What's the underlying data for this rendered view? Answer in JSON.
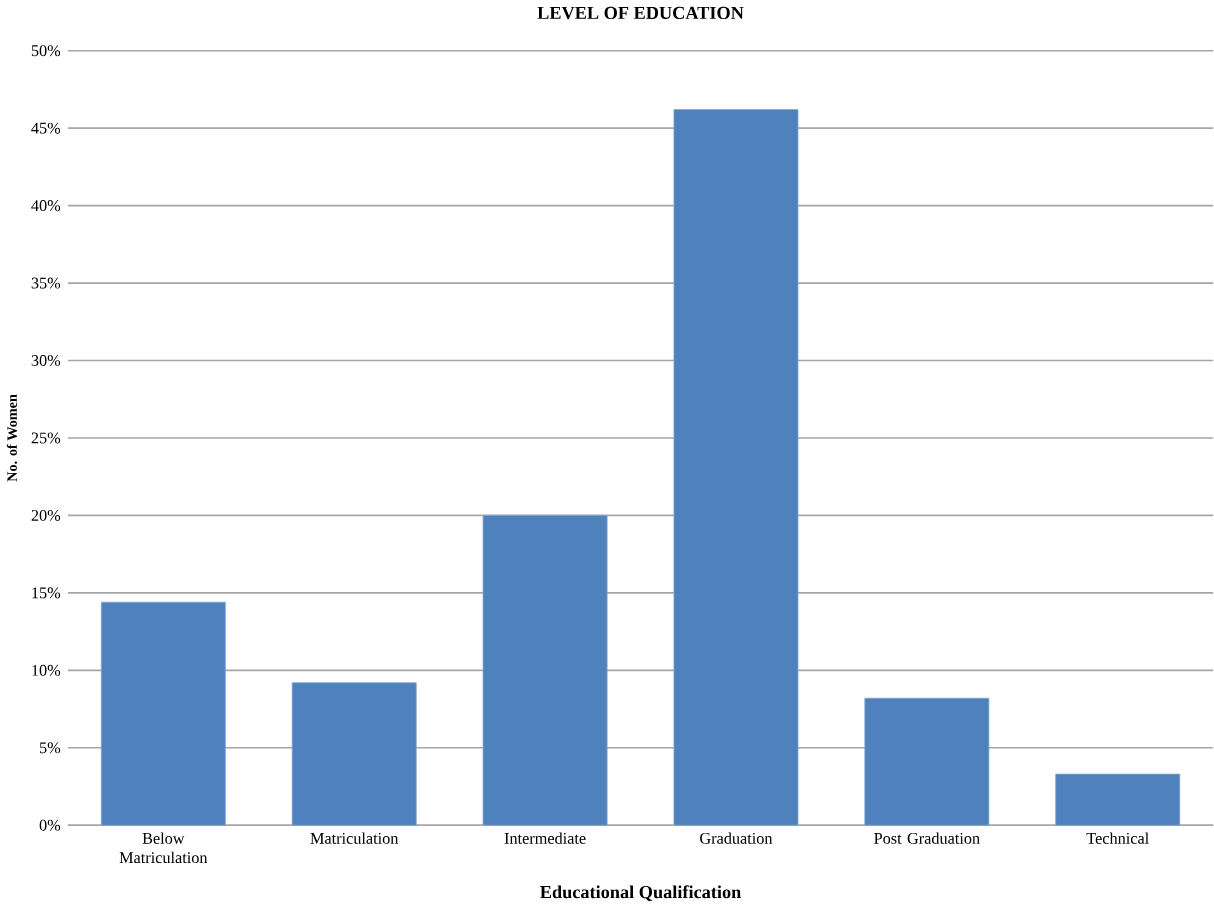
{
  "chart_data": {
    "type": "bar",
    "title": "LEVEL OF EDUCATION",
    "xlabel": "Educational Qualification",
    "ylabel": "No. of Women",
    "categories": [
      "Below Matriculation",
      "Matriculation",
      "Intermediate",
      "Graduation",
      "Post Graduation",
      "Technical"
    ],
    "values": [
      14.4,
      9.2,
      20,
      46.2,
      8.2,
      3.3
    ],
    "color": "#4f81bd",
    "ylim": [
      0,
      50
    ],
    "yticks": [
      {
        "value": 0,
        "label": "0%"
      },
      {
        "value": 5,
        "label": "5%"
      },
      {
        "value": 10,
        "label": "10%"
      },
      {
        "value": 15,
        "label": "15%"
      },
      {
        "value": 20,
        "label": "20%"
      },
      {
        "value": 25,
        "label": "25%"
      },
      {
        "value": 30,
        "label": "30%"
      },
      {
        "value": 35,
        "label": "35%"
      },
      {
        "value": 40,
        "label": "40%"
      },
      {
        "value": 45,
        "label": "45%"
      },
      {
        "value": 50,
        "label": "50%"
      }
    ],
    "grid": "y"
  }
}
